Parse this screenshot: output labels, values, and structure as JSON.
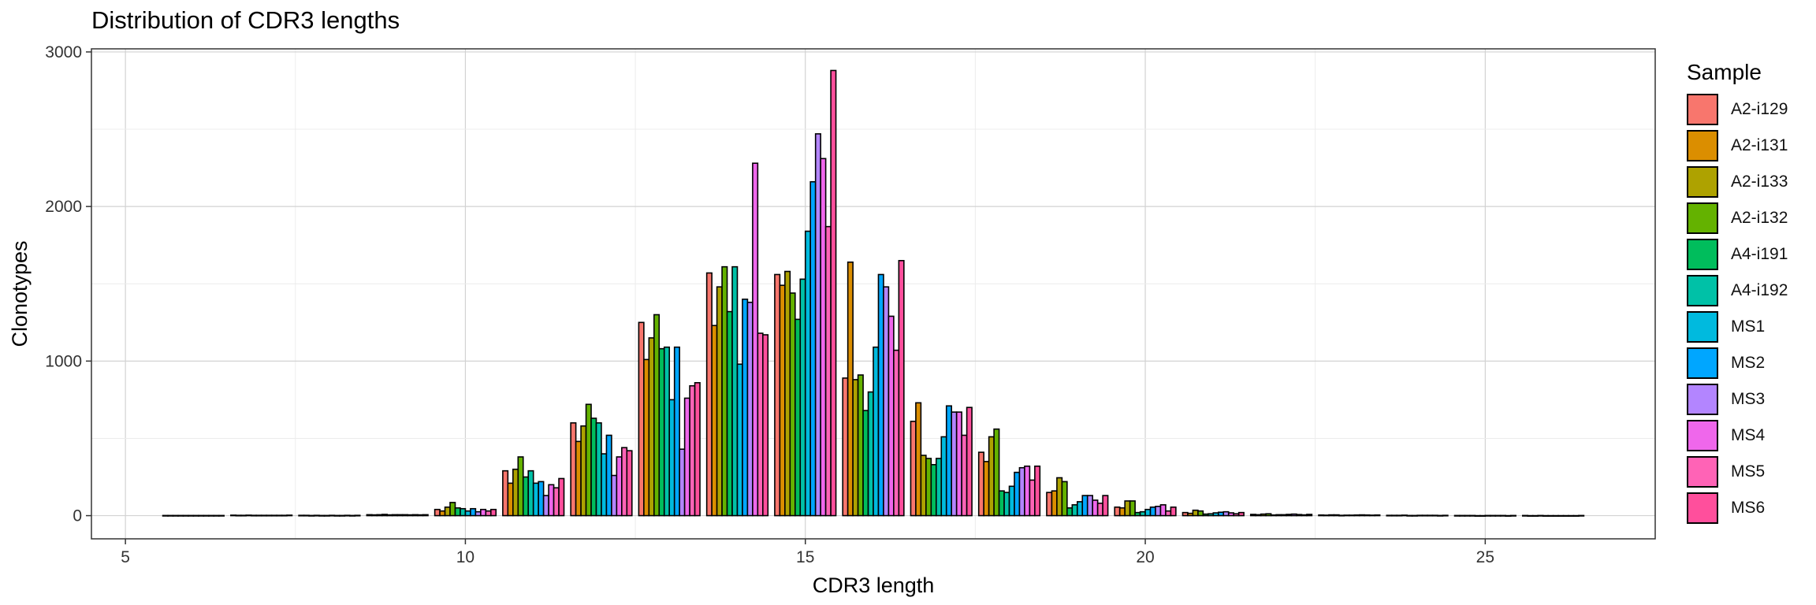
{
  "chart_data": {
    "type": "bar",
    "title": "Distribution of CDR3 lengths",
    "xlabel": "CDR3 length",
    "ylabel": "Clonotypes",
    "xlim": [
      4.5,
      27.5
    ],
    "ylim": [
      -150,
      3020
    ],
    "xticks": [
      5,
      10,
      15,
      20,
      25
    ],
    "yticks": [
      0,
      1000,
      2000,
      3000
    ],
    "grid": true,
    "legend_title": "Sample",
    "legend_position": "right",
    "x": [
      6,
      7,
      8,
      9,
      10,
      11,
      12,
      13,
      14,
      15,
      16,
      17,
      18,
      19,
      20,
      21,
      22,
      23,
      24,
      25,
      26
    ],
    "series": [
      {
        "name": "A2-i129",
        "color": "#F8766D",
        "values": [
          1,
          3,
          2,
          6,
          40,
          290,
          600,
          1250,
          1570,
          1560,
          890,
          610,
          410,
          150,
          55,
          20,
          8,
          4,
          2,
          1,
          1
        ]
      },
      {
        "name": "A2-i131",
        "color": "#DB8E00",
        "values": [
          1,
          2,
          2,
          5,
          30,
          210,
          480,
          1010,
          1230,
          1490,
          1640,
          730,
          350,
          160,
          50,
          15,
          6,
          3,
          2,
          1,
          0
        ]
      },
      {
        "name": "A2-i133",
        "color": "#AEA200",
        "values": [
          1,
          2,
          1,
          6,
          55,
          300,
          580,
          1150,
          1480,
          1580,
          880,
          390,
          510,
          245,
          95,
          35,
          10,
          5,
          2,
          1,
          0
        ]
      },
      {
        "name": "A2-i132",
        "color": "#64B200",
        "values": [
          1,
          3,
          2,
          8,
          85,
          380,
          720,
          1300,
          1610,
          1440,
          910,
          370,
          560,
          220,
          95,
          30,
          12,
          5,
          3,
          1,
          1
        ]
      },
      {
        "name": "A4-i191",
        "color": "#00BD5C",
        "values": [
          1,
          2,
          1,
          5,
          50,
          250,
          630,
          1080,
          1320,
          1270,
          680,
          330,
          160,
          50,
          20,
          10,
          4,
          2,
          1,
          0,
          0
        ]
      },
      {
        "name": "A4-i192",
        "color": "#00C1A7",
        "values": [
          1,
          2,
          1,
          6,
          45,
          290,
          600,
          1090,
          1610,
          1530,
          800,
          370,
          150,
          70,
          25,
          12,
          6,
          3,
          1,
          0,
          0
        ]
      },
      {
        "name": "MS1",
        "color": "#00BADE",
        "values": [
          1,
          2,
          2,
          6,
          30,
          210,
          400,
          750,
          980,
          1840,
          1090,
          510,
          190,
          90,
          40,
          18,
          6,
          3,
          2,
          1,
          0
        ]
      },
      {
        "name": "MS2",
        "color": "#00A6FF",
        "values": [
          1,
          2,
          1,
          6,
          45,
          220,
          520,
          1090,
          1400,
          2160,
          1560,
          710,
          280,
          130,
          55,
          22,
          8,
          4,
          2,
          1,
          0
        ]
      },
      {
        "name": "MS3",
        "color": "#B385FF",
        "values": [
          1,
          2,
          1,
          5,
          25,
          130,
          260,
          430,
          1380,
          2470,
          1480,
          670,
          310,
          130,
          60,
          25,
          10,
          5,
          2,
          1,
          0
        ]
      },
      {
        "name": "MS4",
        "color": "#EF67EB",
        "values": [
          1,
          2,
          2,
          6,
          40,
          200,
          380,
          760,
          2280,
          2310,
          1290,
          670,
          320,
          100,
          70,
          18,
          7,
          4,
          2,
          1,
          0
        ]
      },
      {
        "name": "MS5",
        "color": "#FF63B6",
        "values": [
          1,
          2,
          1,
          5,
          30,
          180,
          440,
          840,
          1180,
          1870,
          1070,
          520,
          230,
          80,
          30,
          12,
          5,
          3,
          1,
          0,
          0
        ]
      },
      {
        "name": "MS6",
        "color": "#FF4F9C",
        "values": [
          1,
          3,
          2,
          6,
          40,
          240,
          420,
          860,
          1170,
          2880,
          1650,
          700,
          320,
          130,
          55,
          20,
          8,
          4,
          2,
          1,
          1
        ]
      }
    ]
  }
}
